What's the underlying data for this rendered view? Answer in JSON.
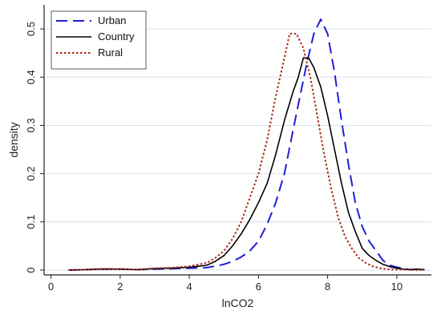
{
  "chart_data": {
    "type": "line",
    "xlabel": "lnCO2",
    "ylabel": "density",
    "xlim": [
      -0.2,
      11.0
    ],
    "ylim": [
      -0.01,
      0.55
    ],
    "xticks": [
      0,
      2,
      4,
      6,
      8,
      10
    ],
    "yticks": [
      0,
      0.1,
      0.2,
      0.3,
      0.4,
      0.5
    ],
    "xtick_labels": [
      "0",
      "2",
      "4",
      "6",
      "8",
      "10"
    ],
    "ytick_labels": [
      "0",
      "0.1",
      "0.2",
      "0.3",
      "0.4",
      "0.5"
    ],
    "grid": "horizontal",
    "legend": "top-left",
    "series": [
      {
        "name": "Urban",
        "color": "#1f1fd6",
        "dash": "long-dash",
        "x": [
          0.5,
          1,
          1.5,
          2,
          2.5,
          3,
          3.5,
          4,
          4.5,
          5,
          5.25,
          5.5,
          5.75,
          6,
          6.25,
          6.5,
          6.75,
          7,
          7.2,
          7.4,
          7.6,
          7.8,
          8.0,
          8.2,
          8.4,
          8.6,
          8.8,
          9.0,
          9.2,
          9.4,
          9.6,
          9.8,
          10.0,
          10.2,
          10.4,
          10.6,
          10.8
        ],
        "y": [
          0,
          0.001,
          0.002,
          0.002,
          0.001,
          0.002,
          0.003,
          0.004,
          0.005,
          0.012,
          0.018,
          0.027,
          0.04,
          0.06,
          0.095,
          0.14,
          0.2,
          0.29,
          0.36,
          0.43,
          0.49,
          0.52,
          0.49,
          0.41,
          0.31,
          0.22,
          0.14,
          0.09,
          0.06,
          0.04,
          0.02,
          0.01,
          0.006,
          0.003,
          0.001,
          0.002,
          0.001
        ]
      },
      {
        "name": "Country",
        "color": "#000000",
        "dash": "solid",
        "x": [
          0.5,
          1,
          1.5,
          2,
          2.5,
          3,
          3.5,
          4,
          4.5,
          4.75,
          5,
          5.25,
          5.5,
          5.75,
          6,
          6.25,
          6.5,
          6.75,
          7,
          7.15,
          7.3,
          7.45,
          7.6,
          7.8,
          8.0,
          8.2,
          8.4,
          8.6,
          8.8,
          9.0,
          9.2,
          9.4,
          9.6,
          9.8,
          10.0,
          10.2,
          10.4,
          10.6,
          10.8
        ],
        "y": [
          0,
          0.001,
          0.002,
          0.002,
          0.001,
          0.003,
          0.004,
          0.006,
          0.01,
          0.018,
          0.03,
          0.05,
          0.075,
          0.105,
          0.14,
          0.18,
          0.24,
          0.31,
          0.37,
          0.4,
          0.44,
          0.44,
          0.42,
          0.38,
          0.32,
          0.25,
          0.18,
          0.12,
          0.08,
          0.045,
          0.03,
          0.02,
          0.012,
          0.007,
          0.004,
          0.002,
          0.001,
          0.002,
          0.001
        ]
      },
      {
        "name": "Rural",
        "color": "#b02a1a",
        "dash": "dotted",
        "x": [
          0.5,
          1,
          1.5,
          2,
          2.5,
          3,
          3.5,
          4,
          4.5,
          4.75,
          5,
          5.25,
          5.5,
          5.75,
          6,
          6.25,
          6.5,
          6.75,
          6.9,
          7.1,
          7.3,
          7.5,
          7.7,
          7.9,
          8.1,
          8.3,
          8.5,
          8.7,
          8.9,
          9.1,
          9.3,
          9.5,
          9.7,
          9.9,
          10.1,
          10.3,
          10.5,
          10.8
        ],
        "y": [
          0,
          0.001,
          0.003,
          0.002,
          0.001,
          0.004,
          0.005,
          0.008,
          0.015,
          0.025,
          0.04,
          0.065,
          0.1,
          0.15,
          0.2,
          0.27,
          0.36,
          0.44,
          0.49,
          0.49,
          0.46,
          0.4,
          0.32,
          0.24,
          0.17,
          0.11,
          0.07,
          0.045,
          0.025,
          0.015,
          0.008,
          0.004,
          0.002,
          0.001,
          0.001,
          0.001,
          0.0,
          0.0
        ]
      }
    ]
  }
}
